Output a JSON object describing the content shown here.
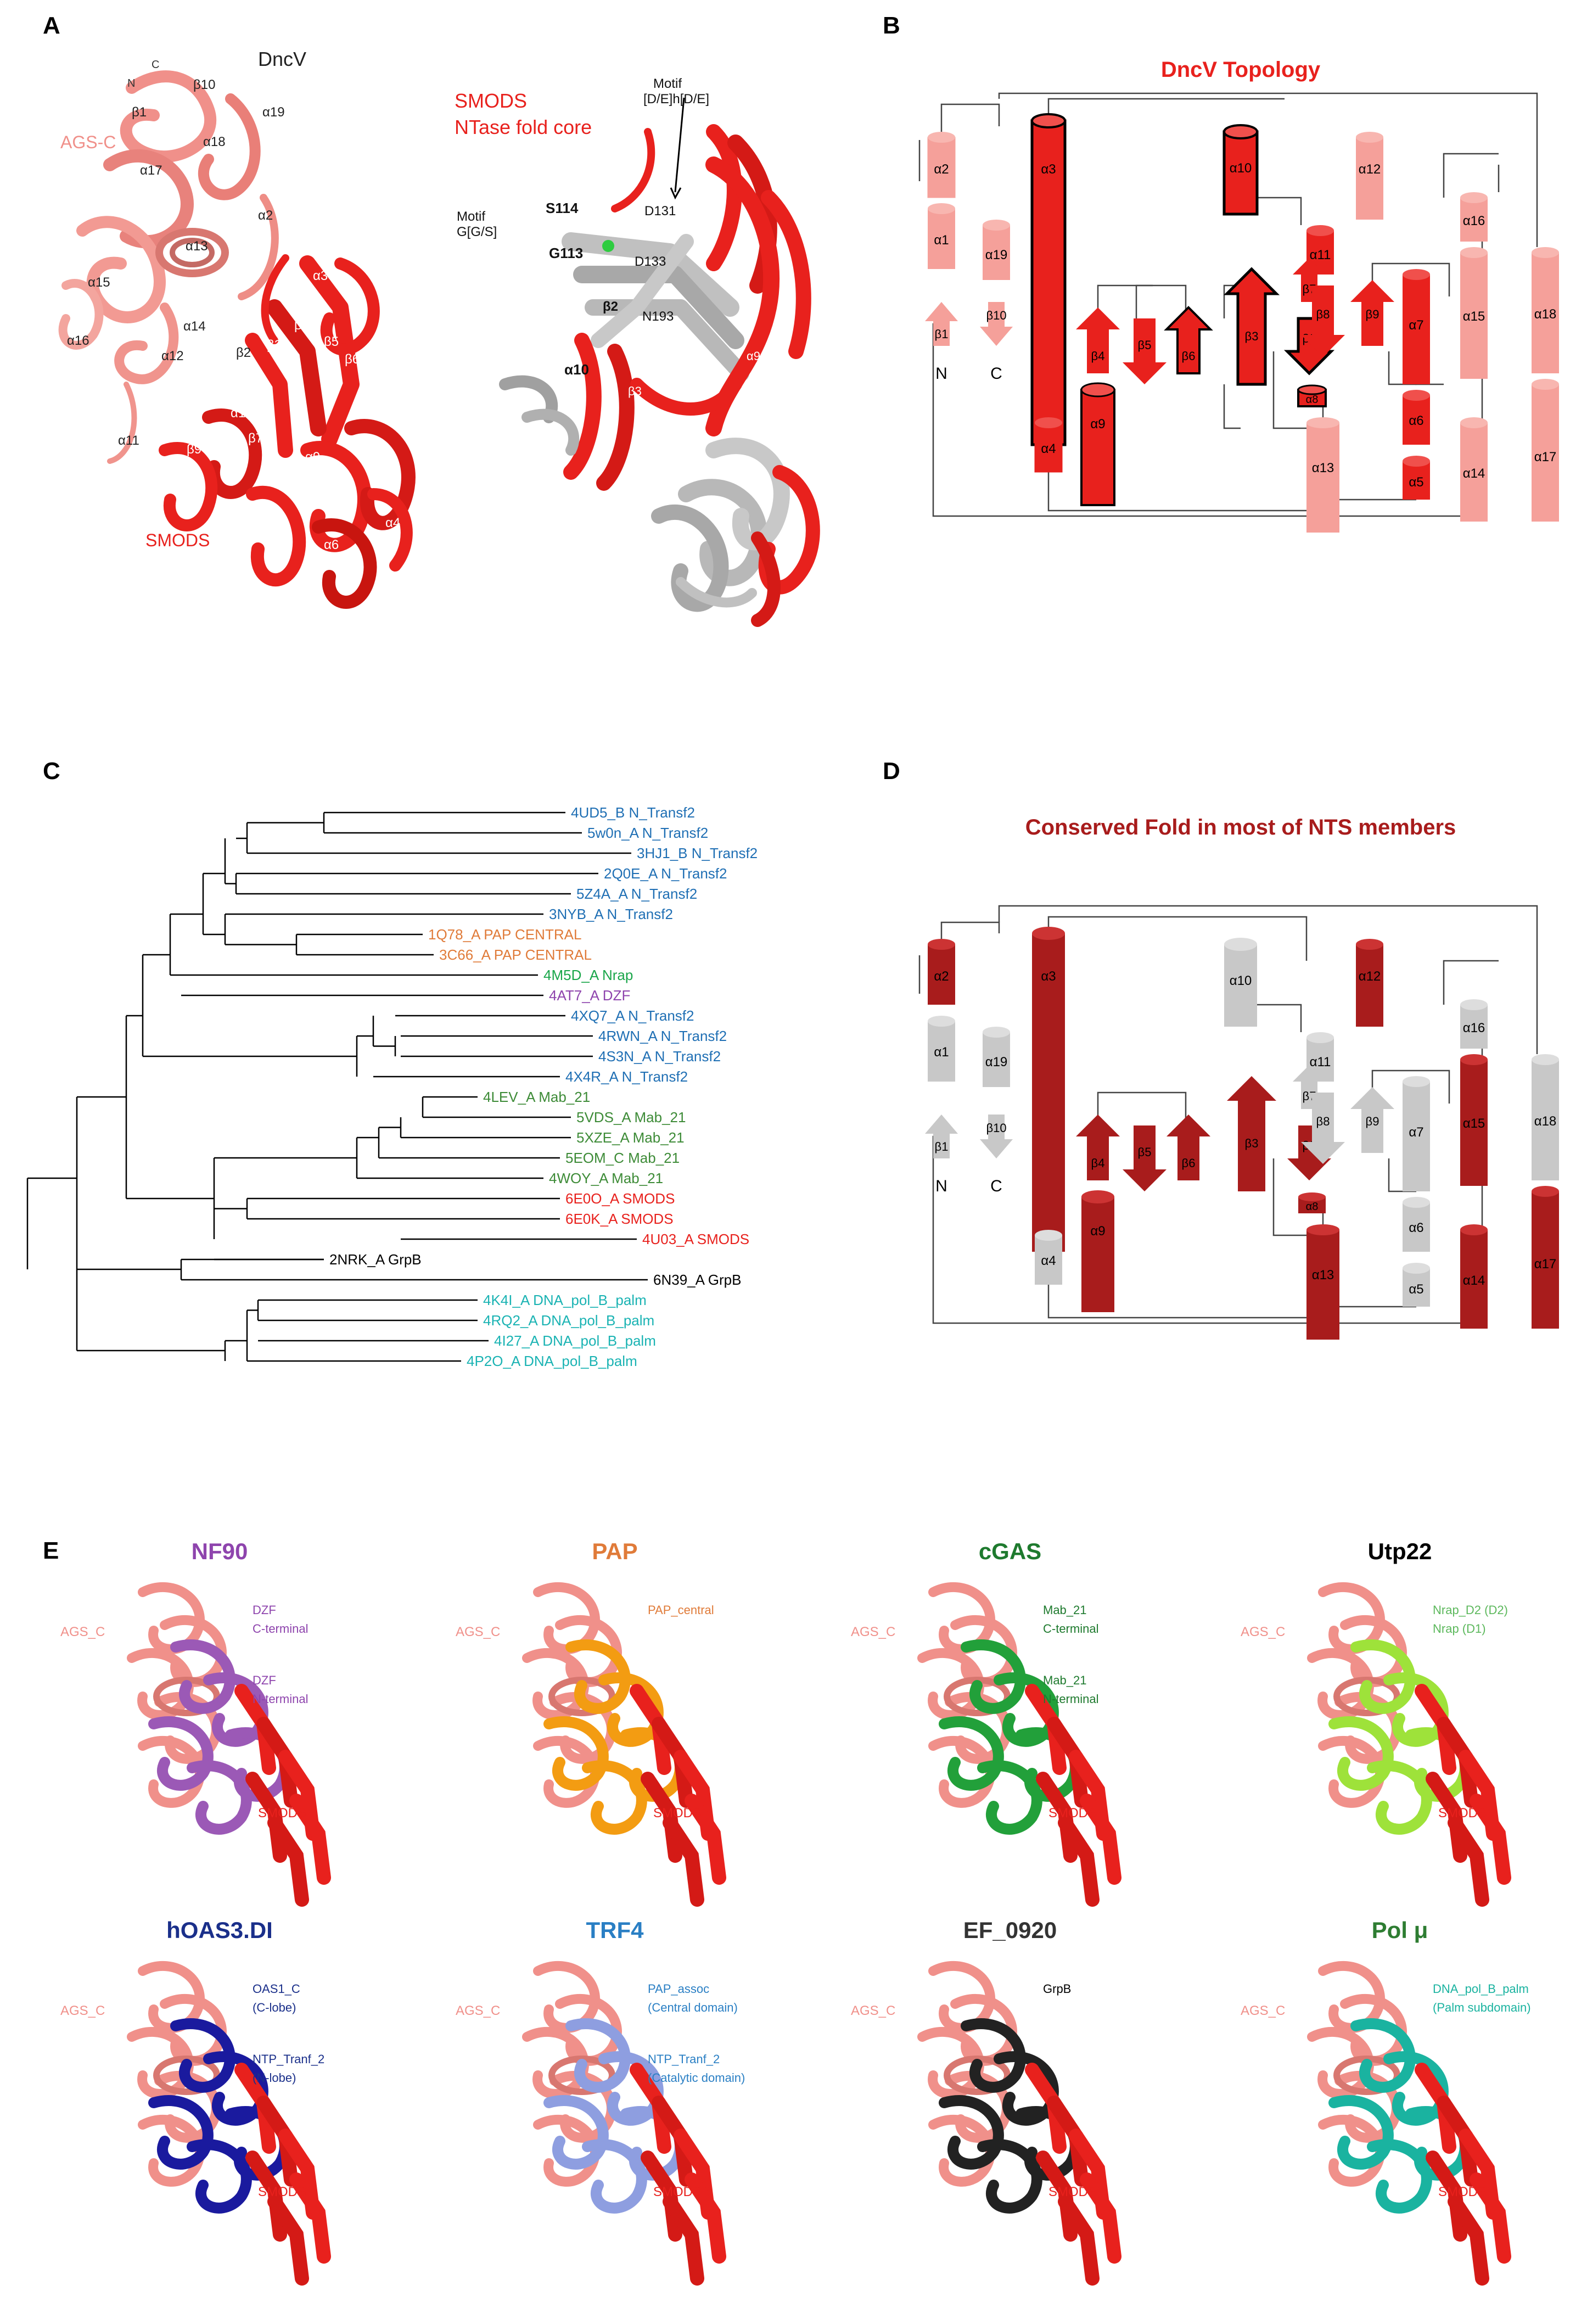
{
  "panels": {
    "A": "A",
    "B": "B",
    "C": "C",
    "D": "D",
    "E": "E"
  },
  "panelA": {
    "left_title": "DncV",
    "ags_c": "AGS-C",
    "smods": "SMODS",
    "n": "N",
    "c": "C",
    "left_labels": [
      "β1",
      "β10",
      "α19",
      "α18",
      "α17",
      "α2",
      "α13",
      "α15",
      "α16",
      "α14",
      "α12",
      "α8",
      "β2",
      "α3",
      "β3",
      "β4",
      "β5",
      "β6",
      "α10",
      "β7",
      "β8",
      "β9",
      "α11",
      "α9",
      "α5",
      "α4",
      "α6",
      "α7"
    ],
    "right_title_1": "SMODS",
    "right_title_2": "NTase fold core",
    "motif1_l1": "Motif",
    "motif1_l2": "[D/E]h[D/E]",
    "motif2_l1": "Motif",
    "motif2_l2": "G[G/S]",
    "s114": "S114",
    "g113": "G113",
    "d131": "D131",
    "d133": "D133",
    "n193": "N193",
    "a8": "α8",
    "b2": "β2",
    "a10": "α10",
    "b3": "β3",
    "a5": "α5",
    "a9": "α9",
    "b6": "β6"
  },
  "panelB": {
    "title": "DncV Topology",
    "n": "N",
    "c": "C",
    "elements": [
      "α2",
      "α1",
      "β1",
      "α19",
      "β10",
      "α3",
      "α4",
      "β4",
      "α9",
      "β5",
      "β6",
      "α10",
      "β3",
      "β7",
      "β2",
      "α8",
      "α11",
      "β8",
      "α12",
      "β9",
      "α13",
      "α7",
      "α6",
      "α5",
      "α16",
      "α15",
      "α14",
      "α18",
      "α17"
    ]
  },
  "panelC": {
    "leaves": [
      {
        "label": "4UD5_B N_Transf2",
        "color": "#1f6fb4"
      },
      {
        "label": "5w0n_A N_Transf2",
        "color": "#1f6fb4"
      },
      {
        "label": "3HJ1_B N_Transf2",
        "color": "#1f6fb4"
      },
      {
        "label": "2Q0E_A N_Transf2",
        "color": "#1f6fb4"
      },
      {
        "label": "5Z4A_A N_Transf2",
        "color": "#1f6fb4"
      },
      {
        "label": "3NYB_A N_Transf2",
        "color": "#1f6fb4"
      },
      {
        "label": "1Q78_A PAP CENTRAL",
        "color": "#e07b39"
      },
      {
        "label": "3C66_A PAP CENTRAL",
        "color": "#e07b39"
      },
      {
        "label": "4M5D_A Nrap",
        "color": "#1aa64a"
      },
      {
        "label": "4AT7_A DZF",
        "color": "#8e44ad"
      },
      {
        "label": "4XQ7_A N_Transf2",
        "color": "#1f6fb4"
      },
      {
        "label": "4RWN_A N_Transf2",
        "color": "#1f6fb4"
      },
      {
        "label": "4S3N_A N_Transf2",
        "color": "#1f6fb4"
      },
      {
        "label": "4X4R_A N_Transf2",
        "color": "#1f6fb4"
      },
      {
        "label": "4LEV_A Mab_21",
        "color": "#3d8b37"
      },
      {
        "label": "5VDS_A Mab_21",
        "color": "#3d8b37"
      },
      {
        "label": "5XZE_A Mab_21",
        "color": "#3d8b37"
      },
      {
        "label": "5EOM_C Mab_21",
        "color": "#3d8b37"
      },
      {
        "label": "4WOY_A Mab_21",
        "color": "#3d8b37"
      },
      {
        "label": "6E0O_A SMODS",
        "color": "#e8211d"
      },
      {
        "label": "6E0K_A SMODS",
        "color": "#e8211d"
      },
      {
        "label": "4U03_A SMODS",
        "color": "#e8211d"
      },
      {
        "label": "2NRK_A GrpB",
        "color": "#000000"
      },
      {
        "label": "6N39_A GrpB",
        "color": "#000000"
      },
      {
        "label": "4K4I_A DNA_pol_B_palm",
        "color": "#1ab3b3"
      },
      {
        "label": "4RQ2_A DNA_pol_B_palm",
        "color": "#1ab3b3"
      },
      {
        "label": "4I27_A DNA_pol_B_palm",
        "color": "#1ab3b3"
      },
      {
        "label": "4P2O_A DNA_pol_B_palm",
        "color": "#1ab3b3"
      }
    ]
  },
  "panelD": {
    "title": "Conserved Fold in most of NTS members",
    "n": "N",
    "c": "C",
    "elements": [
      "α2",
      "α1",
      "β1",
      "α19",
      "β10",
      "α3",
      "α4",
      "β4",
      "α9",
      "β5",
      "β6",
      "α10",
      "β3",
      "β7",
      "β2",
      "α8",
      "α11",
      "β8",
      "α12",
      "β9",
      "α13",
      "α7",
      "α6",
      "α5",
      "α16",
      "α15",
      "α14",
      "α18",
      "α17"
    ]
  },
  "panelE": {
    "structures": [
      {
        "title": "NF90",
        "title_color": "#8e44ad",
        "ags": "AGS_C",
        "labels": [
          "DZF",
          "C-terminal",
          "DZF",
          "N-terminal"
        ],
        "smods": "SMODS",
        "label_color": "#8e44ad",
        "accent": "#9b59b6"
      },
      {
        "title": "PAP",
        "title_color": "#e07b39",
        "ags": "AGS_C",
        "labels": [
          "PAP_central"
        ],
        "smods": "SMODS",
        "label_color": "#e07b39",
        "accent": "#f39c12"
      },
      {
        "title": "cGAS",
        "title_color": "#1e7a2e",
        "ags": "AGS_C",
        "labels": [
          "Mab_21",
          "C-terminal",
          "Mab_21",
          "N-terminal"
        ],
        "smods": "SMODS",
        "label_color": "#1e7a2e",
        "accent": "#22a03a"
      },
      {
        "title": "Utp22",
        "title_color": "#000000",
        "ags": "AGS_C",
        "labels": [
          "Nrap_D2 (D2)",
          "Nrap (D1)"
        ],
        "smods": "SMODS",
        "label_color": "#5cb85c",
        "accent": "#9ee23a"
      },
      {
        "title": "hOAS3.DI",
        "title_color": "#1a2f8a",
        "ags": "AGS_C",
        "labels": [
          "OAS1_C",
          "(C-lobe)",
          "NTP_Tranf_2",
          "(N-lobe)"
        ],
        "smods": "SMODS",
        "label_color": "#1a2f8a",
        "accent": "#1a1a9e"
      },
      {
        "title": "TRF4",
        "title_color": "#2a7fc4",
        "ags": "AGS_C",
        "labels": [
          "PAP_assoc",
          "(Central domain)",
          "NTP_Tranf_2",
          "(Catalytic domain)"
        ],
        "smods": "SMODS",
        "label_color": "#2a7fc4",
        "accent": "#8e9ee0"
      },
      {
        "title": "EF_0920",
        "title_color": "#333333",
        "ags": "AGS_C",
        "labels": [
          "GrpB"
        ],
        "smods": "SMODS",
        "label_color": "#000000",
        "accent": "#222222"
      },
      {
        "title": "Pol μ",
        "title_color": "#2e7d32",
        "ags": "AGS_C",
        "labels": [
          "DNA_pol_B_palm",
          "(Palm subdomain)"
        ],
        "smods": "SMODS",
        "label_color": "#1ab3a0",
        "accent": "#1ab3a0"
      }
    ]
  }
}
